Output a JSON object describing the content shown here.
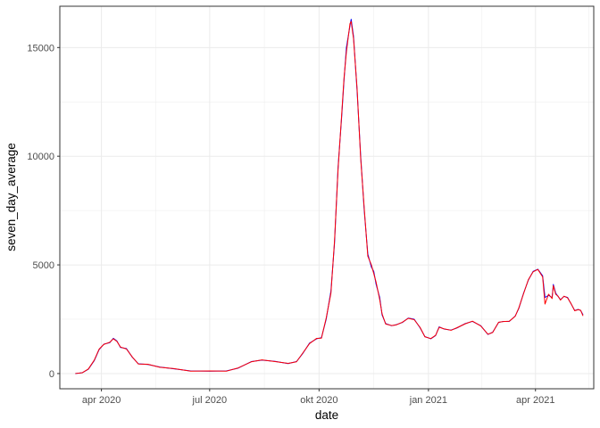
{
  "chart_data": {
    "type": "line",
    "title": "",
    "xlabel": "date",
    "ylabel": "seven_day_average",
    "x_axis_type": "date",
    "xlim": [
      "2020-02-26",
      "2021-05-20"
    ],
    "ylim": [
      -700,
      16900
    ],
    "x_ticks": [
      {
        "date": "2020-04-01",
        "label": "apr 2020"
      },
      {
        "date": "2020-07-01",
        "label": "jul 2020"
      },
      {
        "date": "2020-10-01",
        "label": "okt 2020"
      },
      {
        "date": "2021-01-01",
        "label": "jan 2021"
      },
      {
        "date": "2021-04-01",
        "label": "apr 2021"
      }
    ],
    "y_ticks": [
      {
        "value": 0,
        "label": "0"
      },
      {
        "value": 5000,
        "label": "5000"
      },
      {
        "value": 10000,
        "label": "10000"
      },
      {
        "value": 15000,
        "label": "15000"
      }
    ],
    "grid": true,
    "legend": "none",
    "series": [
      {
        "color": "#0000ff",
        "points": [
          [
            "2020-03-10",
            0
          ],
          [
            "2020-03-16",
            40
          ],
          [
            "2020-03-21",
            200
          ],
          [
            "2020-03-26",
            600
          ],
          [
            "2020-03-30",
            1100
          ],
          [
            "2020-04-03",
            1350
          ],
          [
            "2020-04-08",
            1420
          ],
          [
            "2020-04-11",
            1620
          ],
          [
            "2020-04-14",
            1500
          ],
          [
            "2020-04-17",
            1200
          ],
          [
            "2020-04-22",
            1150
          ],
          [
            "2020-04-27",
            750
          ],
          [
            "2020-05-02",
            450
          ],
          [
            "2020-05-10",
            420
          ],
          [
            "2020-05-20",
            300
          ],
          [
            "2020-06-01",
            220
          ],
          [
            "2020-06-15",
            120
          ],
          [
            "2020-07-01",
            110
          ],
          [
            "2020-07-15",
            120
          ],
          [
            "2020-07-25",
            250
          ],
          [
            "2020-08-05",
            550
          ],
          [
            "2020-08-14",
            620
          ],
          [
            "2020-08-25",
            560
          ],
          [
            "2020-09-05",
            460
          ],
          [
            "2020-09-12",
            550
          ],
          [
            "2020-09-17",
            900
          ],
          [
            "2020-09-23",
            1400
          ],
          [
            "2020-09-29",
            1600
          ],
          [
            "2020-10-03",
            1650
          ],
          [
            "2020-10-07",
            2500
          ],
          [
            "2020-10-11",
            3800
          ],
          [
            "2020-10-14",
            6000
          ],
          [
            "2020-10-17",
            9500
          ],
          [
            "2020-10-20",
            11800
          ],
          [
            "2020-10-22",
            13500
          ],
          [
            "2020-10-24",
            15000
          ],
          [
            "2020-10-27",
            16000
          ],
          [
            "2020-10-28",
            16300
          ],
          [
            "2020-10-30",
            15500
          ],
          [
            "2020-11-02",
            13000
          ],
          [
            "2020-11-05",
            10000
          ],
          [
            "2020-11-08",
            7500
          ],
          [
            "2020-11-11",
            5500
          ],
          [
            "2020-11-14",
            4900
          ],
          [
            "2020-11-16",
            4700
          ],
          [
            "2020-11-18",
            4100
          ],
          [
            "2020-11-21",
            3500
          ],
          [
            "2020-11-23",
            2700
          ],
          [
            "2020-11-26",
            2300
          ],
          [
            "2020-12-01",
            2200
          ],
          [
            "2020-12-05",
            2250
          ],
          [
            "2020-12-10",
            2350
          ],
          [
            "2020-12-15",
            2550
          ],
          [
            "2020-12-20",
            2500
          ],
          [
            "2020-12-25",
            2100
          ],
          [
            "2020-12-29",
            1700
          ],
          [
            "2021-01-03",
            1600
          ],
          [
            "2021-01-07",
            1750
          ],
          [
            "2021-01-10",
            2150
          ],
          [
            "2021-01-14",
            2050
          ],
          [
            "2021-01-20",
            2000
          ],
          [
            "2021-01-25",
            2100
          ],
          [
            "2021-02-01",
            2300
          ],
          [
            "2021-02-07",
            2400
          ],
          [
            "2021-02-14",
            2200
          ],
          [
            "2021-02-20",
            1800
          ],
          [
            "2021-02-24",
            1900
          ],
          [
            "2021-03-01",
            2350
          ],
          [
            "2021-03-05",
            2400
          ],
          [
            "2021-03-10",
            2400
          ],
          [
            "2021-03-15",
            2650
          ],
          [
            "2021-03-18",
            3000
          ],
          [
            "2021-03-22",
            3700
          ],
          [
            "2021-03-26",
            4300
          ],
          [
            "2021-03-30",
            4700
          ],
          [
            "2021-04-03",
            4800
          ],
          [
            "2021-04-07",
            4500
          ],
          [
            "2021-04-09",
            3500
          ],
          [
            "2021-04-12",
            3600
          ],
          [
            "2021-04-15",
            3500
          ],
          [
            "2021-04-16",
            4100
          ],
          [
            "2021-04-18",
            3700
          ],
          [
            "2021-04-20",
            3550
          ],
          [
            "2021-04-22",
            3400
          ],
          [
            "2021-04-25",
            3550
          ],
          [
            "2021-04-28",
            3500
          ],
          [
            "2021-05-01",
            3200
          ],
          [
            "2021-05-04",
            2900
          ],
          [
            "2021-05-07",
            2950
          ],
          [
            "2021-05-09",
            2900
          ],
          [
            "2021-05-11",
            2700
          ]
        ]
      },
      {
        "color": "#ff0000",
        "points": [
          [
            "2020-03-10",
            0
          ],
          [
            "2020-03-16",
            40
          ],
          [
            "2020-03-21",
            210
          ],
          [
            "2020-03-26",
            620
          ],
          [
            "2020-03-30",
            1120
          ],
          [
            "2020-04-03",
            1340
          ],
          [
            "2020-04-08",
            1440
          ],
          [
            "2020-04-11",
            1600
          ],
          [
            "2020-04-14",
            1480
          ],
          [
            "2020-04-17",
            1220
          ],
          [
            "2020-04-22",
            1130
          ],
          [
            "2020-04-27",
            760
          ],
          [
            "2020-05-02",
            440
          ],
          [
            "2020-05-10",
            430
          ],
          [
            "2020-05-20",
            290
          ],
          [
            "2020-06-01",
            230
          ],
          [
            "2020-06-15",
            110
          ],
          [
            "2020-07-01",
            120
          ],
          [
            "2020-07-15",
            110
          ],
          [
            "2020-07-25",
            260
          ],
          [
            "2020-08-05",
            540
          ],
          [
            "2020-08-14",
            630
          ],
          [
            "2020-08-25",
            550
          ],
          [
            "2020-09-05",
            470
          ],
          [
            "2020-09-12",
            540
          ],
          [
            "2020-09-17",
            920
          ],
          [
            "2020-09-23",
            1380
          ],
          [
            "2020-09-29",
            1620
          ],
          [
            "2020-10-03",
            1630
          ],
          [
            "2020-10-07",
            2550
          ],
          [
            "2020-10-11",
            3700
          ],
          [
            "2020-10-14",
            6100
          ],
          [
            "2020-10-17",
            9400
          ],
          [
            "2020-10-20",
            11900
          ],
          [
            "2020-10-22",
            13600
          ],
          [
            "2020-10-24",
            14800
          ],
          [
            "2020-10-27",
            16100
          ],
          [
            "2020-10-28",
            16200
          ],
          [
            "2020-10-30",
            15400
          ],
          [
            "2020-11-02",
            13100
          ],
          [
            "2020-11-05",
            9900
          ],
          [
            "2020-11-08",
            7600
          ],
          [
            "2020-11-11",
            5400
          ],
          [
            "2020-11-14",
            5000
          ],
          [
            "2020-11-16",
            4600
          ],
          [
            "2020-11-18",
            4200
          ],
          [
            "2020-11-21",
            3400
          ],
          [
            "2020-11-23",
            2750
          ],
          [
            "2020-11-26",
            2280
          ],
          [
            "2020-12-01",
            2210
          ],
          [
            "2020-12-05",
            2240
          ],
          [
            "2020-12-10",
            2360
          ],
          [
            "2020-12-15",
            2540
          ],
          [
            "2020-12-20",
            2480
          ],
          [
            "2020-12-25",
            2120
          ],
          [
            "2020-12-29",
            1690
          ],
          [
            "2021-01-03",
            1610
          ],
          [
            "2021-01-07",
            1760
          ],
          [
            "2021-01-10",
            2130
          ],
          [
            "2021-01-14",
            2060
          ],
          [
            "2021-01-20",
            1990
          ],
          [
            "2021-01-25",
            2110
          ],
          [
            "2021-02-01",
            2290
          ],
          [
            "2021-02-07",
            2410
          ],
          [
            "2021-02-14",
            2190
          ],
          [
            "2021-02-20",
            1810
          ],
          [
            "2021-02-24",
            1890
          ],
          [
            "2021-03-01",
            2360
          ],
          [
            "2021-03-05",
            2390
          ],
          [
            "2021-03-10",
            2410
          ],
          [
            "2021-03-15",
            2640
          ],
          [
            "2021-03-18",
            3020
          ],
          [
            "2021-03-22",
            3680
          ],
          [
            "2021-03-26",
            4320
          ],
          [
            "2021-03-30",
            4680
          ],
          [
            "2021-04-03",
            4790
          ],
          [
            "2021-04-07",
            4450
          ],
          [
            "2021-04-09",
            3200
          ],
          [
            "2021-04-12",
            3650
          ],
          [
            "2021-04-15",
            3450
          ],
          [
            "2021-04-16",
            4050
          ],
          [
            "2021-04-18",
            3650
          ],
          [
            "2021-04-20",
            3560
          ],
          [
            "2021-04-22",
            3380
          ],
          [
            "2021-04-25",
            3560
          ],
          [
            "2021-04-28",
            3480
          ],
          [
            "2021-05-01",
            3210
          ],
          [
            "2021-05-04",
            2890
          ],
          [
            "2021-05-07",
            2940
          ],
          [
            "2021-05-09",
            2910
          ],
          [
            "2021-05-11",
            2650
          ]
        ]
      }
    ]
  }
}
